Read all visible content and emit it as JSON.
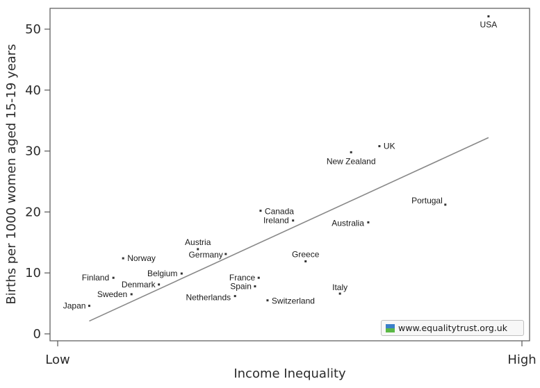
{
  "chart_data": {
    "type": "scatter",
    "xlabel": "Income Inequality",
    "ylabel": "Births per 1000 women aged 15-19 years",
    "x_tick_labels": [
      "Low",
      "High"
    ],
    "ylim": [
      0,
      53
    ],
    "y_ticks": [
      0,
      10,
      20,
      30,
      40,
      50
    ],
    "grid": false,
    "legend": "",
    "points": [
      {
        "name": "USA",
        "x": 0.928,
        "y": 52.1
      },
      {
        "name": "UK",
        "x": 0.693,
        "y": 30.8
      },
      {
        "name": "New Zealand",
        "x": 0.632,
        "y": 29.8
      },
      {
        "name": "Portugal",
        "x": 0.835,
        "y": 21.2
      },
      {
        "name": "Canada",
        "x": 0.437,
        "y": 20.2
      },
      {
        "name": "Ireland",
        "x": 0.507,
        "y": 18.6
      },
      {
        "name": "Australia",
        "x": 0.669,
        "y": 18.3
      },
      {
        "name": "Austria",
        "x": 0.302,
        "y": 13.9
      },
      {
        "name": "Germany",
        "x": 0.362,
        "y": 13.1
      },
      {
        "name": "Norway",
        "x": 0.141,
        "y": 12.4
      },
      {
        "name": "Greece",
        "x": 0.534,
        "y": 11.9
      },
      {
        "name": "Belgium",
        "x": 0.267,
        "y": 9.9
      },
      {
        "name": "Finland",
        "x": 0.12,
        "y": 9.2
      },
      {
        "name": "France",
        "x": 0.433,
        "y": 9.2
      },
      {
        "name": "Denmark",
        "x": 0.218,
        "y": 8.1
      },
      {
        "name": "Spain",
        "x": 0.425,
        "y": 7.8
      },
      {
        "name": "Italy",
        "x": 0.608,
        "y": 6.6
      },
      {
        "name": "Sweden",
        "x": 0.159,
        "y": 6.5
      },
      {
        "name": "Netherlands",
        "x": 0.382,
        "y": 6.2
      },
      {
        "name": "Switzerland",
        "x": 0.452,
        "y": 5.5
      },
      {
        "name": "Japan",
        "x": 0.068,
        "y": 4.6
      }
    ],
    "trend_line": {
      "x": [
        0.068,
        0.928
      ],
      "y": [
        2.1,
        32.2
      ]
    },
    "colors": {
      "points": "#333333",
      "trend": "#888888",
      "axis": "#555555"
    }
  },
  "watermark": {
    "text": "www.equalitytrust.org.uk",
    "logo_colors": [
      "#3a7fc8",
      "#5bb845"
    ]
  }
}
